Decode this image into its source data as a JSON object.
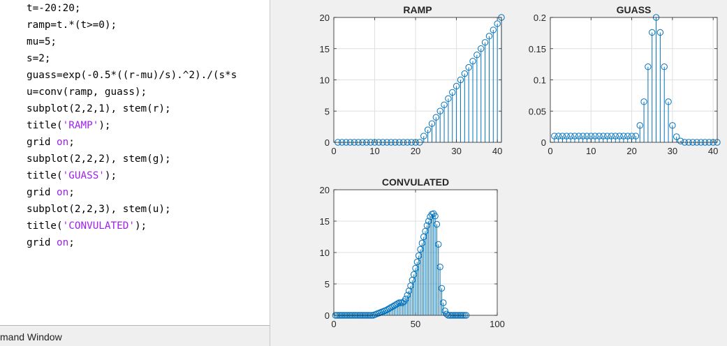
{
  "editor": {
    "lines": [
      [
        {
          "t": "t=-20:20;"
        }
      ],
      [
        {
          "t": "ramp=t.*(t>=0);"
        }
      ],
      [
        {
          "t": "mu=5;"
        }
      ],
      [
        {
          "t": "s=2;"
        }
      ],
      [
        {
          "t": "guass=exp(-0.5*((r-mu)/s).^2)./(s*s"
        }
      ],
      [
        {
          "t": "u=conv(ramp, guass);"
        }
      ],
      [
        {
          "t": "subplot(2,2,1), stem(r);"
        }
      ],
      [
        {
          "t": "title("
        },
        {
          "t": "'RAMP'",
          "s": 1
        },
        {
          "t": ");"
        }
      ],
      [
        {
          "t": "grid "
        },
        {
          "t": "on",
          "s": 1
        },
        {
          "t": ";"
        }
      ],
      [
        {
          "t": "subplot(2,2,2), stem(g);"
        }
      ],
      [
        {
          "t": "title("
        },
        {
          "t": "'GUASS'",
          "s": 1
        },
        {
          "t": ");"
        }
      ],
      [
        {
          "t": "grid "
        },
        {
          "t": "on",
          "s": 1
        },
        {
          "t": ";"
        }
      ],
      [
        {
          "t": "subplot(2,2,3), stem(u);"
        }
      ],
      [
        {
          "t": "title("
        },
        {
          "t": "'CONVULATED'",
          "s": 1
        },
        {
          "t": ");"
        }
      ],
      [
        {
          "t": "grid "
        },
        {
          "t": "on",
          "s": 1
        },
        {
          "t": ";"
        }
      ]
    ]
  },
  "command_window": {
    "label": "mand Window"
  },
  "colors": {
    "stem": "#0072bd",
    "grid": "#dfdfdf",
    "figure_bg": "#f0f0f0",
    "string": "#a020f0"
  },
  "chart_data": [
    {
      "type": "stem",
      "title": "RAMP",
      "grid": true,
      "xlim": [
        0,
        41
      ],
      "ylim": [
        0,
        20
      ],
      "xticks": [
        0,
        10,
        20,
        30,
        40
      ],
      "yticks": [
        0,
        5,
        10,
        15,
        20
      ],
      "x": [
        1,
        2,
        3,
        4,
        5,
        6,
        7,
        8,
        9,
        10,
        11,
        12,
        13,
        14,
        15,
        16,
        17,
        18,
        19,
        20,
        21,
        22,
        23,
        24,
        25,
        26,
        27,
        28,
        29,
        30,
        31,
        32,
        33,
        34,
        35,
        36,
        37,
        38,
        39,
        40,
        41
      ],
      "values": [
        0,
        0,
        0,
        0,
        0,
        0,
        0,
        0,
        0,
        0,
        0,
        0,
        0,
        0,
        0,
        0,
        0,
        0,
        0,
        0,
        0,
        1,
        2,
        3,
        4,
        5,
        6,
        7,
        8,
        9,
        10,
        11,
        12,
        13,
        14,
        15,
        16,
        17,
        18,
        19,
        20
      ]
    },
    {
      "type": "stem",
      "title": "GUASS",
      "grid": true,
      "xlim": [
        0,
        41
      ],
      "ylim": [
        0,
        0.2
      ],
      "xticks": [
        0,
        10,
        20,
        30,
        40
      ],
      "yticks": [
        0,
        0.05,
        0.1,
        0.15,
        0.2
      ],
      "x": [
        1,
        2,
        3,
        4,
        5,
        6,
        7,
        8,
        9,
        10,
        11,
        12,
        13,
        14,
        15,
        16,
        17,
        18,
        19,
        20,
        21,
        22,
        23,
        24,
        25,
        26,
        27,
        28,
        29,
        30,
        31,
        32,
        33,
        34,
        35,
        36,
        37,
        38,
        39,
        40,
        41
      ],
      "values": [
        0.01,
        0.01,
        0.01,
        0.01,
        0.01,
        0.01,
        0.01,
        0.01,
        0.01,
        0.01,
        0.01,
        0.01,
        0.01,
        0.01,
        0.01,
        0.01,
        0.01,
        0.01,
        0.01,
        0.01,
        0.01,
        0.027,
        0.065,
        0.121,
        0.176,
        0.2,
        0.176,
        0.121,
        0.065,
        0.027,
        0.009,
        0.002,
        0,
        0,
        0,
        0,
        0,
        0,
        0,
        0,
        0
      ]
    },
    {
      "type": "stem",
      "title": "CONVULATED",
      "grid": true,
      "xlim": [
        0,
        100
      ],
      "ylim": [
        0,
        20
      ],
      "xticks": [
        0,
        50,
        100
      ],
      "yticks": [
        0,
        5,
        10,
        15,
        20
      ],
      "x": [
        1,
        2,
        3,
        4,
        5,
        6,
        7,
        8,
        9,
        10,
        11,
        12,
        13,
        14,
        15,
        16,
        17,
        18,
        19,
        20,
        21,
        22,
        23,
        24,
        25,
        26,
        27,
        28,
        29,
        30,
        31,
        32,
        33,
        34,
        35,
        36,
        37,
        38,
        39,
        40,
        41,
        42,
        43,
        44,
        45,
        46,
        47,
        48,
        49,
        50,
        51,
        52,
        53,
        54,
        55,
        56,
        57,
        58,
        59,
        60,
        61,
        62,
        63,
        64,
        65,
        66,
        67,
        68,
        69,
        70,
        71,
        72,
        73,
        74,
        75,
        76,
        77,
        78,
        79,
        80,
        81
      ],
      "values": [
        0,
        0,
        0,
        0,
        0,
        0,
        0,
        0,
        0,
        0,
        0,
        0,
        0,
        0,
        0,
        0,
        0,
        0,
        0,
        0,
        0,
        0,
        0,
        0,
        0.1,
        0.2,
        0.3,
        0.4,
        0.5,
        0.6,
        0.7,
        0.8,
        0.95,
        1.1,
        1.25,
        1.4,
        1.55,
        1.7,
        1.85,
        2.0,
        2.0,
        2.0,
        2.2,
        2.6,
        3.2,
        3.9,
        4.7,
        5.6,
        6.5,
        7.5,
        8.5,
        9.5,
        10.5,
        11.5,
        12.5,
        13.4,
        14.3,
        15.0,
        15.7,
        16.1,
        16.2,
        15.8,
        14.5,
        11.3,
        7.7,
        4.3,
        2.0,
        0.7,
        0.2,
        0,
        0,
        0,
        0,
        0,
        0,
        0,
        0,
        0,
        0,
        0,
        0
      ]
    }
  ]
}
